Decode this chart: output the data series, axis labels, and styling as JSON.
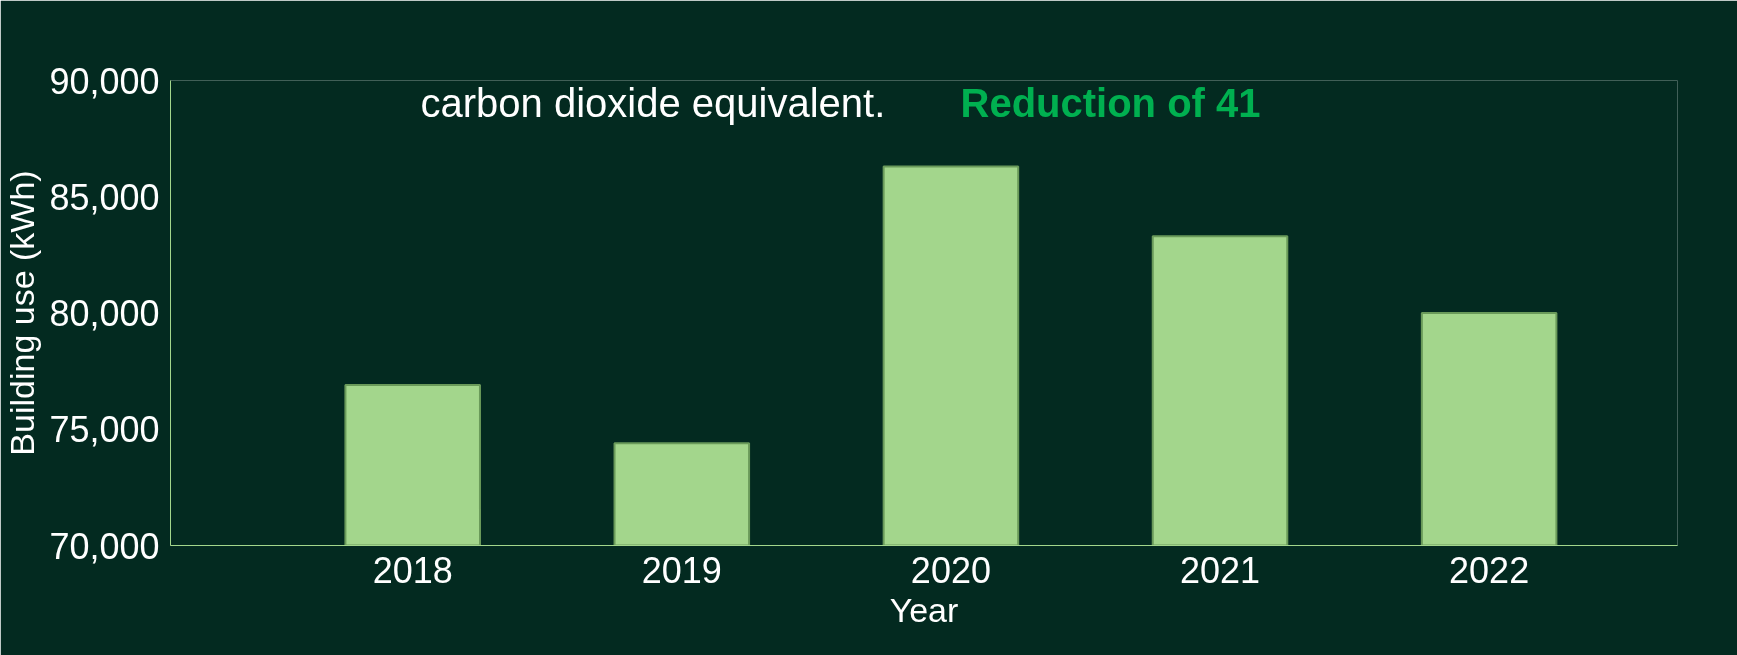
{
  "chart_data": {
    "type": "bar",
    "xlabel": "Year",
    "ylabel": "Building use (kWh)",
    "categories": [
      "2018",
      "2019",
      "2020",
      "2021",
      "2022"
    ],
    "values": [
      76900,
      74400,
      86300,
      83300,
      80000
    ],
    "color": "#a3d68c",
    "ylim": [
      70000,
      90000
    ],
    "yticks": [
      {
        "value": 70000,
        "label": "70,000"
      },
      {
        "value": 75000,
        "label": "75,000"
      },
      {
        "value": 80000,
        "label": "80,000"
      },
      {
        "value": 85000,
        "label": "85,000"
      },
      {
        "value": 90000,
        "label": "90,000"
      }
    ],
    "annotations": [
      "carbon dioxide equivalent.",
      "Reduction of 41"
    ],
    "grid": false
  }
}
